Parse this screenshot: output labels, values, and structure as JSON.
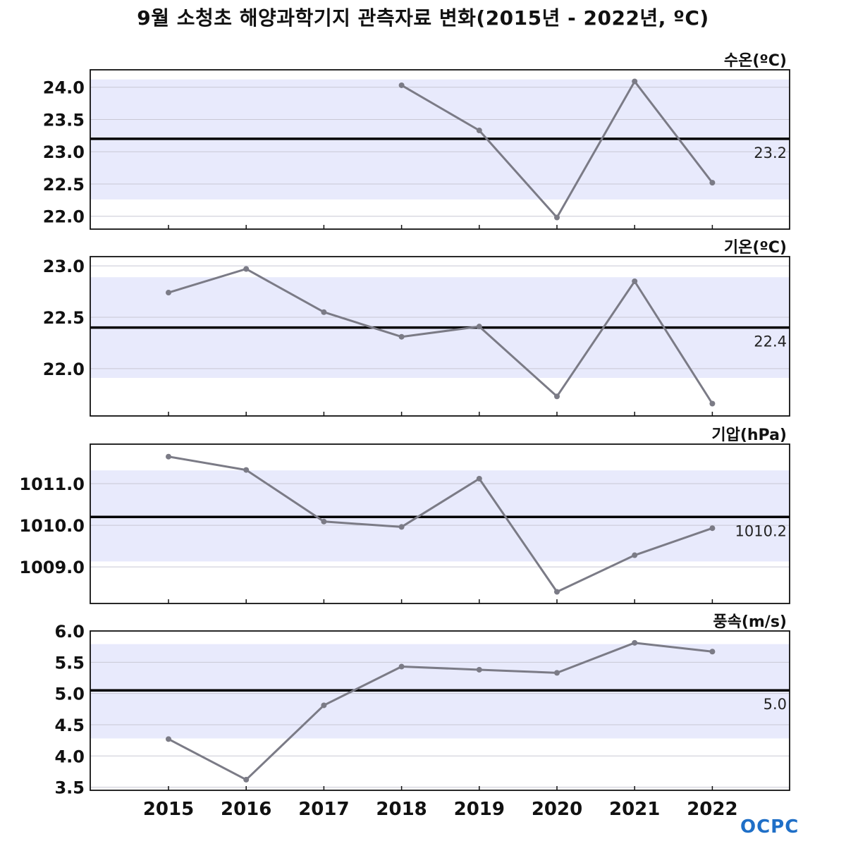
{
  "title": "9월 소청초 해양과학기지 관측자료 변화(2015년 - 2022년, ºC)",
  "logo_text": "OCPC",
  "colors": {
    "band": "#e8eafc",
    "series_line": "#7b7b86",
    "mean_line": "#000000",
    "grid": "#c8c8d4"
  },
  "chart_data": [
    {
      "type": "line",
      "title": "수온(ºC)",
      "x": [
        2015,
        2016,
        2017,
        2018,
        2019,
        2020,
        2021,
        2022
      ],
      "values": [
        null,
        null,
        null,
        24.03,
        23.33,
        21.98,
        24.09,
        22.52
      ],
      "mean": 23.2,
      "mean_label": "23.2",
      "band": [
        22.26,
        24.12
      ],
      "yticks": [
        "24.0",
        "23.5",
        "23.0",
        "22.5",
        "22.0"
      ],
      "ylim": [
        21.8,
        24.27
      ],
      "grid": true
    },
    {
      "type": "line",
      "title": "기온(ºC)",
      "x": [
        2015,
        2016,
        2017,
        2018,
        2019,
        2020,
        2021,
        2022
      ],
      "values": [
        22.74,
        22.97,
        22.55,
        22.31,
        22.41,
        21.73,
        22.85,
        21.66
      ],
      "mean": 22.4,
      "mean_label": "22.4",
      "band": [
        21.91,
        22.89
      ],
      "yticks": [
        "23.0",
        "22.5",
        "22.0"
      ],
      "ylim": [
        21.54,
        23.09
      ],
      "grid": true
    },
    {
      "type": "line",
      "title": "기압(hPa)",
      "x": [
        2015,
        2016,
        2017,
        2018,
        2019,
        2020,
        2021,
        2022
      ],
      "values": [
        1011.65,
        1011.33,
        1010.09,
        1009.96,
        1011.12,
        1008.4,
        1009.28,
        1009.93
      ],
      "mean": 1010.2,
      "mean_label": "1010.2",
      "band": [
        1009.13,
        1011.32
      ],
      "yticks": [
        "1011.0",
        "1010.0",
        "1009.0"
      ],
      "ylim": [
        1008.12,
        1011.95
      ],
      "grid": true
    },
    {
      "type": "line",
      "title": "풍속(m/s)",
      "x": [
        2015,
        2016,
        2017,
        2018,
        2019,
        2020,
        2021,
        2022
      ],
      "values": [
        4.27,
        3.62,
        4.81,
        5.43,
        5.38,
        5.33,
        5.81,
        5.67
      ],
      "mean": 5.05,
      "mean_label": "5.0",
      "band": [
        4.28,
        5.79
      ],
      "yticks": [
        "6.0",
        "5.5",
        "5.0",
        "4.5",
        "4.0",
        "3.5"
      ],
      "ylim": [
        3.45,
        6.0
      ],
      "grid": true
    }
  ],
  "x_tick_labels": [
    "2015",
    "2016",
    "2017",
    "2018",
    "2019",
    "2020",
    "2021",
    "2022"
  ]
}
